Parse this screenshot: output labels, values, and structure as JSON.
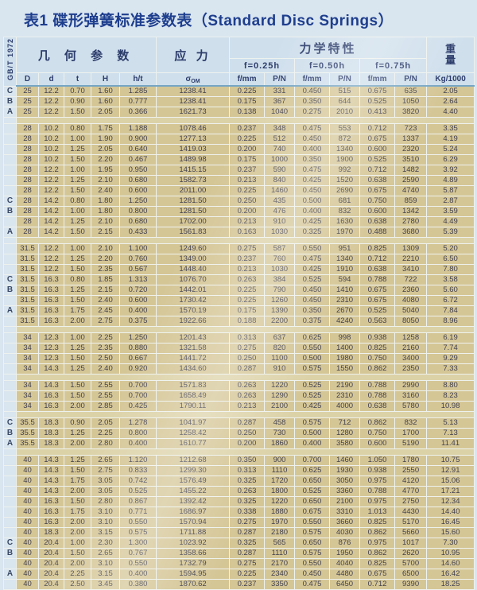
{
  "page": {
    "title": "表1  碟形弹簧标准参数表（Standard Disc Springs）"
  },
  "colors": {
    "title_navy": "#1e3e8e",
    "header_blue": "#cfdfec",
    "row_tan": "#d5c696",
    "separator_tan": "#dcd2a8",
    "page_blue": "#d9e5ef",
    "header_rule_blue": "#76a6c4"
  },
  "table": {
    "standard": "GB/T 1972",
    "groups": {
      "geometry": "几 何 参 数",
      "stress": "应 力",
      "mechanical": "力学特性",
      "weight": "重\n量"
    },
    "deflections": [
      "f=0.25h",
      "f=0.50h",
      "f=0.75h"
    ],
    "cols": {
      "D": "D",
      "d": "d",
      "t": "t",
      "H": "H",
      "ht": "h/t",
      "sigma": "σ",
      "sigma_sub": "OM",
      "f": "f/mm",
      "p": "P/N",
      "kg": "Kg/1000"
    },
    "rows": [
      {
        "c": "C",
        "v": [
          "25",
          "12.2",
          "0.70",
          "1.60",
          "1.285",
          "1238.41",
          "0.225",
          "331",
          "0.450",
          "515",
          "0.675",
          "635",
          "2.05"
        ]
      },
      {
        "c": "B",
        "v": [
          "25",
          "12.2",
          "0.90",
          "1.60",
          "0.777",
          "1238.41",
          "0.175",
          "367",
          "0.350",
          "644",
          "0.525",
          "1050",
          "2.64"
        ]
      },
      {
        "c": "A",
        "v": [
          "25",
          "12.2",
          "1.50",
          "2.05",
          "0.366",
          "1621.73",
          "0.138",
          "1040",
          "0.275",
          "2010",
          "0.413",
          "3820",
          "4.40"
        ]
      },
      {
        "sep": true
      },
      {
        "v": [
          "28",
          "10.2",
          "0.80",
          "1.75",
          "1.188",
          "1078.46",
          "0.237",
          "348",
          "0.475",
          "553",
          "0.712",
          "723",
          "3.35"
        ]
      },
      {
        "v": [
          "28",
          "10.2",
          "1.00",
          "1.90",
          "0.900",
          "1277.13",
          "0.225",
          "512",
          "0.450",
          "872",
          "0.675",
          "1337",
          "4.19"
        ]
      },
      {
        "v": [
          "28",
          "10.2",
          "1.25",
          "2.05",
          "0.640",
          "1419.03",
          "0.200",
          "740",
          "0.400",
          "1340",
          "0.600",
          "2320",
          "5.24"
        ]
      },
      {
        "v": [
          "28",
          "10.2",
          "1.50",
          "2.20",
          "0.467",
          "1489.98",
          "0.175",
          "1000",
          "0.350",
          "1900",
          "0.525",
          "3510",
          "6.29"
        ]
      },
      {
        "v": [
          "28",
          "12.2",
          "1.00",
          "1.95",
          "0.950",
          "1415.15",
          "0.237",
          "590",
          "0.475",
          "992",
          "0.712",
          "1482",
          "3.92"
        ]
      },
      {
        "v": [
          "28",
          "12.2",
          "1.25",
          "2.10",
          "0.680",
          "1582.73",
          "0.213",
          "840",
          "0.425",
          "1520",
          "0.638",
          "2590",
          "4.89"
        ]
      },
      {
        "v": [
          "28",
          "12.2",
          "1.50",
          "2.40",
          "0.600",
          "2011.00",
          "0.225",
          "1460",
          "0.450",
          "2690",
          "0.675",
          "4740",
          "5.87"
        ]
      },
      {
        "c": "C",
        "v": [
          "28",
          "14.2",
          "0.80",
          "1.80",
          "1.250",
          "1281.50",
          "0.250",
          "435",
          "0.500",
          "681",
          "0.750",
          "859",
          "2.87"
        ]
      },
      {
        "c": "B",
        "v": [
          "28",
          "14.2",
          "1.00",
          "1.80",
          "0.800",
          "1281.50",
          "0.200",
          "476",
          "0.400",
          "832",
          "0.600",
          "1342",
          "3.59"
        ]
      },
      {
        "v": [
          "28",
          "14.2",
          "1.25",
          "2.10",
          "0.680",
          "1702.00",
          "0.213",
          "910",
          "0.425",
          "1630",
          "0.638",
          "2780",
          "4.49"
        ]
      },
      {
        "c": "A",
        "v": [
          "28",
          "14.2",
          "1.50",
          "2.15",
          "0.433",
          "1561.83",
          "0.163",
          "1030",
          "0.325",
          "1970",
          "0.488",
          "3680",
          "5.39"
        ]
      },
      {
        "sep": true
      },
      {
        "v": [
          "31.5",
          "12.2",
          "1.00",
          "2.10",
          "1.100",
          "1249.60",
          "0.275",
          "587",
          "0.550",
          "951",
          "0.825",
          "1309",
          "5.20"
        ]
      },
      {
        "v": [
          "31.5",
          "12.2",
          "1.25",
          "2.20",
          "0.760",
          "1349.00",
          "0.237",
          "760",
          "0.475",
          "1340",
          "0.712",
          "2210",
          "6.50"
        ]
      },
      {
        "v": [
          "31.5",
          "12.2",
          "1.50",
          "2.35",
          "0.567",
          "1448.40",
          "0.213",
          "1030",
          "0.425",
          "1910",
          "0.638",
          "3410",
          "7.80"
        ]
      },
      {
        "c": "C",
        "v": [
          "31.5",
          "16.3",
          "0.80",
          "1.85",
          "1.313",
          "1076.70",
          "0.263",
          "384",
          "0.525",
          "594",
          "0.788",
          "722",
          "3.58"
        ]
      },
      {
        "c": "B",
        "v": [
          "31.5",
          "16.3",
          "1.25",
          "2.15",
          "0.720",
          "1442.01",
          "0.225",
          "790",
          "0.450",
          "1410",
          "0.675",
          "2360",
          "5.60"
        ]
      },
      {
        "v": [
          "31.5",
          "16.3",
          "1.50",
          "2.40",
          "0.600",
          "1730.42",
          "0.225",
          "1260",
          "0.450",
          "2310",
          "0.675",
          "4080",
          "6.72"
        ]
      },
      {
        "c": "A",
        "v": [
          "31.5",
          "16.3",
          "1.75",
          "2.45",
          "0.400",
          "1570.19",
          "0.175",
          "1390",
          "0.350",
          "2670",
          "0.525",
          "5040",
          "7.84"
        ]
      },
      {
        "v": [
          "31.5",
          "16.3",
          "2.00",
          "2.75",
          "0.375",
          "1922.66",
          "0.188",
          "2200",
          "0.375",
          "4240",
          "0.563",
          "8050",
          "8.96"
        ]
      },
      {
        "sep": true
      },
      {
        "v": [
          "34",
          "12.3",
          "1.00",
          "2.25",
          "1.250",
          "1201.43",
          "0.313",
          "637",
          "0.625",
          "998",
          "0.938",
          "1258",
          "6.19"
        ]
      },
      {
        "v": [
          "34",
          "12.3",
          "1.25",
          "2.35",
          "0.880",
          "1321.58",
          "0.275",
          "820",
          "0.550",
          "1400",
          "0.825",
          "2160",
          "7.74"
        ]
      },
      {
        "v": [
          "34",
          "12.3",
          "1.50",
          "2.50",
          "0.667",
          "1441.72",
          "0.250",
          "1100",
          "0.500",
          "1980",
          "0.750",
          "3400",
          "9.29"
        ]
      },
      {
        "v": [
          "34",
          "14.3",
          "1.25",
          "2.40",
          "0.920",
          "1434.60",
          "0.287",
          "910",
          "0.575",
          "1550",
          "0.862",
          "2350",
          "7.33"
        ]
      },
      {
        "sep": true
      },
      {
        "v": [
          "34",
          "14.3",
          "1.50",
          "2.55",
          "0.700",
          "1571.83",
          "0.263",
          "1220",
          "0.525",
          "2190",
          "0.788",
          "2990",
          "8.80"
        ]
      },
      {
        "v": [
          "34",
          "16.3",
          "1.50",
          "2.55",
          "0.700",
          "1658.49",
          "0.263",
          "1290",
          "0.525",
          "2310",
          "0.788",
          "3160",
          "8.23"
        ]
      },
      {
        "v": [
          "34",
          "16.3",
          "2.00",
          "2.85",
          "0.425",
          "1790.11",
          "0.213",
          "2100",
          "0.425",
          "4000",
          "0.638",
          "5780",
          "10.98"
        ]
      },
      {
        "sep": true
      },
      {
        "c": "C",
        "v": [
          "35.5",
          "18.3",
          "0.90",
          "2.05",
          "1.278",
          "1041.97",
          "0.287",
          "458",
          "0.575",
          "712",
          "0.862",
          "832",
          "5.13"
        ]
      },
      {
        "c": "B",
        "v": [
          "35.5",
          "18.3",
          "1.25",
          "2.25",
          "0.800",
          "1258.42",
          "0.250",
          "730",
          "0.500",
          "1280",
          "0.750",
          "1700",
          "7.13"
        ]
      },
      {
        "c": "A",
        "v": [
          "35.5",
          "18.3",
          "2.00",
          "2.80",
          "0.400",
          "1610.77",
          "0.200",
          "1860",
          "0.400",
          "3580",
          "0.600",
          "5190",
          "11.41"
        ]
      },
      {
        "sep": true
      },
      {
        "v": [
          "40",
          "14.3",
          "1.25",
          "2.65",
          "1.120",
          "1212.68",
          "0.350",
          "900",
          "0.700",
          "1460",
          "1.050",
          "1780",
          "10.75"
        ]
      },
      {
        "v": [
          "40",
          "14.3",
          "1.50",
          "2.75",
          "0.833",
          "1299.30",
          "0.313",
          "1110",
          "0.625",
          "1930",
          "0.938",
          "2550",
          "12.91"
        ]
      },
      {
        "v": [
          "40",
          "14.3",
          "1.75",
          "3.05",
          "0.742",
          "1576.49",
          "0.325",
          "1720",
          "0.650",
          "3050",
          "0.975",
          "4120",
          "15.06"
        ]
      },
      {
        "v": [
          "40",
          "14.3",
          "2.00",
          "3.05",
          "0.525",
          "1455.22",
          "0.263",
          "1800",
          "0.525",
          "3360",
          "0.788",
          "4770",
          "17.21"
        ]
      },
      {
        "v": [
          "40",
          "16.3",
          "1.50",
          "2.80",
          "0.867",
          "1392.42",
          "0.325",
          "1220",
          "0.650",
          "2100",
          "0.975",
          "2750",
          "12.34"
        ]
      },
      {
        "v": [
          "40",
          "16.3",
          "1.75",
          "3.10",
          "0.771",
          "1686.97",
          "0.338",
          "1880",
          "0.675",
          "3310",
          "1.013",
          "4430",
          "14.40"
        ]
      },
      {
        "v": [
          "40",
          "16.3",
          "2.00",
          "3.10",
          "0.550",
          "1570.94",
          "0.275",
          "1970",
          "0.550",
          "3660",
          "0.825",
          "5170",
          "16.45"
        ]
      },
      {
        "v": [
          "40",
          "18.3",
          "2.00",
          "3.15",
          "0.575",
          "1711.88",
          "0.287",
          "2180",
          "0.575",
          "4030",
          "0.862",
          "5660",
          "15.60"
        ]
      },
      {
        "c": "C",
        "v": [
          "40",
          "20.4",
          "1.00",
          "2.30",
          "1.300",
          "1023.92",
          "0.325",
          "565",
          "0.650",
          "876",
          "0.975",
          "1017",
          "7.30"
        ]
      },
      {
        "c": "B",
        "v": [
          "40",
          "20.4",
          "1.50",
          "2.65",
          "0.767",
          "1358.66",
          "0.287",
          "1110",
          "0.575",
          "1950",
          "0.862",
          "2620",
          "10.95"
        ]
      },
      {
        "v": [
          "40",
          "20.4",
          "2.00",
          "3.10",
          "0.550",
          "1732.79",
          "0.275",
          "2170",
          "0.550",
          "4040",
          "0.825",
          "5700",
          "14.60"
        ]
      },
      {
        "c": "A",
        "v": [
          "40",
          "20.4",
          "2.25",
          "3.15",
          "0.400",
          "1594.95",
          "0.225",
          "2340",
          "0.450",
          "4480",
          "0.675",
          "6500",
          "16.42"
        ]
      },
      {
        "v": [
          "40",
          "20.4",
          "2.50",
          "3.45",
          "0.380",
          "1870.62",
          "0.237",
          "3350",
          "0.475",
          "6450",
          "0.712",
          "9390",
          "18.25"
        ]
      }
    ]
  }
}
